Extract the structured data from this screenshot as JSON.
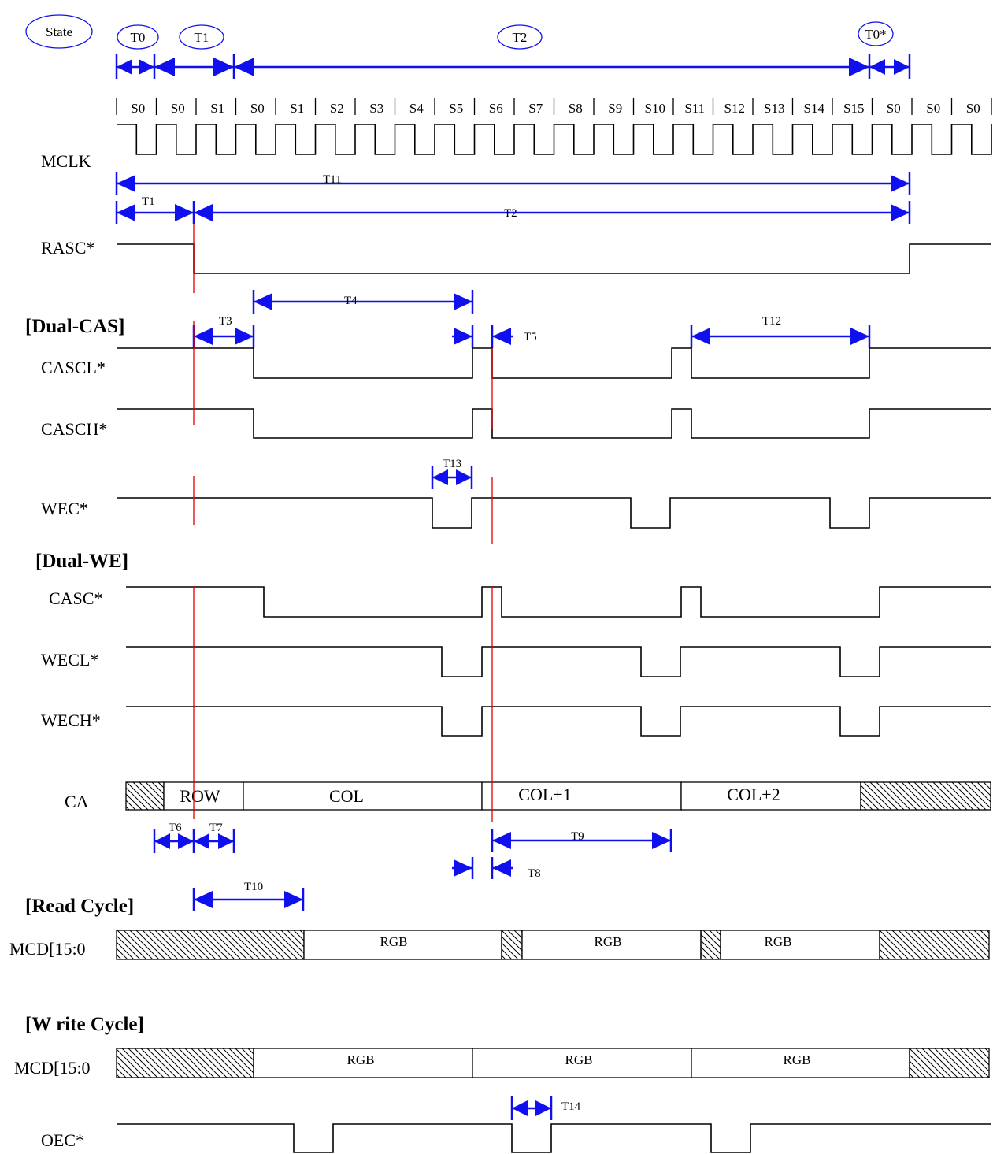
{
  "state_markers": [
    {
      "label": "State"
    },
    {
      "label": "T0"
    },
    {
      "label": "T1"
    },
    {
      "label": "T2"
    },
    {
      "label": "T0*"
    }
  ],
  "clock_states": [
    "S0",
    "S0",
    "S1",
    "S0",
    "S1",
    "S2",
    "S3",
    "S4",
    "S5",
    "S6",
    "S7",
    "S8",
    "S9",
    "S10",
    "S11",
    "S12",
    "S13",
    "S14",
    "S15",
    "S0",
    "S0",
    "S0"
  ],
  "section_headers": {
    "dual_cas": "[Dual-CAS]",
    "dual_we": "[Dual-WE]",
    "read_cycle": "[Read Cycle]",
    "write_cycle": "[W rite Cycle]"
  },
  "signals": {
    "mclk": "MCLK",
    "rasc": "RASC*",
    "cascl": "CASCL*",
    "cascH": "CASCH*",
    "wec": "WEC*",
    "casc": "CASC*",
    "wecl": "WECL*",
    "wech": "WECH*",
    "ca": "CA",
    "mcd_read": "MCD[15:0",
    "mcd_write": "MCD[15:0",
    "oec": "OEC*"
  },
  "timing_labels": {
    "t11": "T11",
    "t1": "T1",
    "t2": "T2",
    "t3": "T3",
    "t4": "T4",
    "t5": "T5",
    "t12": "T12",
    "t13": "T13",
    "t6": "T6",
    "t7": "T7",
    "t9": "T9",
    "t8": "T8",
    "t10": "T10",
    "t14": "T14"
  },
  "ca_segments": {
    "row": "ROW",
    "col": "COL",
    "col1": "COL+1",
    "col2": "COL+2"
  },
  "read_segments": [
    "RGB",
    "RGB",
    "RGB"
  ],
  "write_segments": [
    "RGB",
    "RGB",
    "RGB"
  ]
}
